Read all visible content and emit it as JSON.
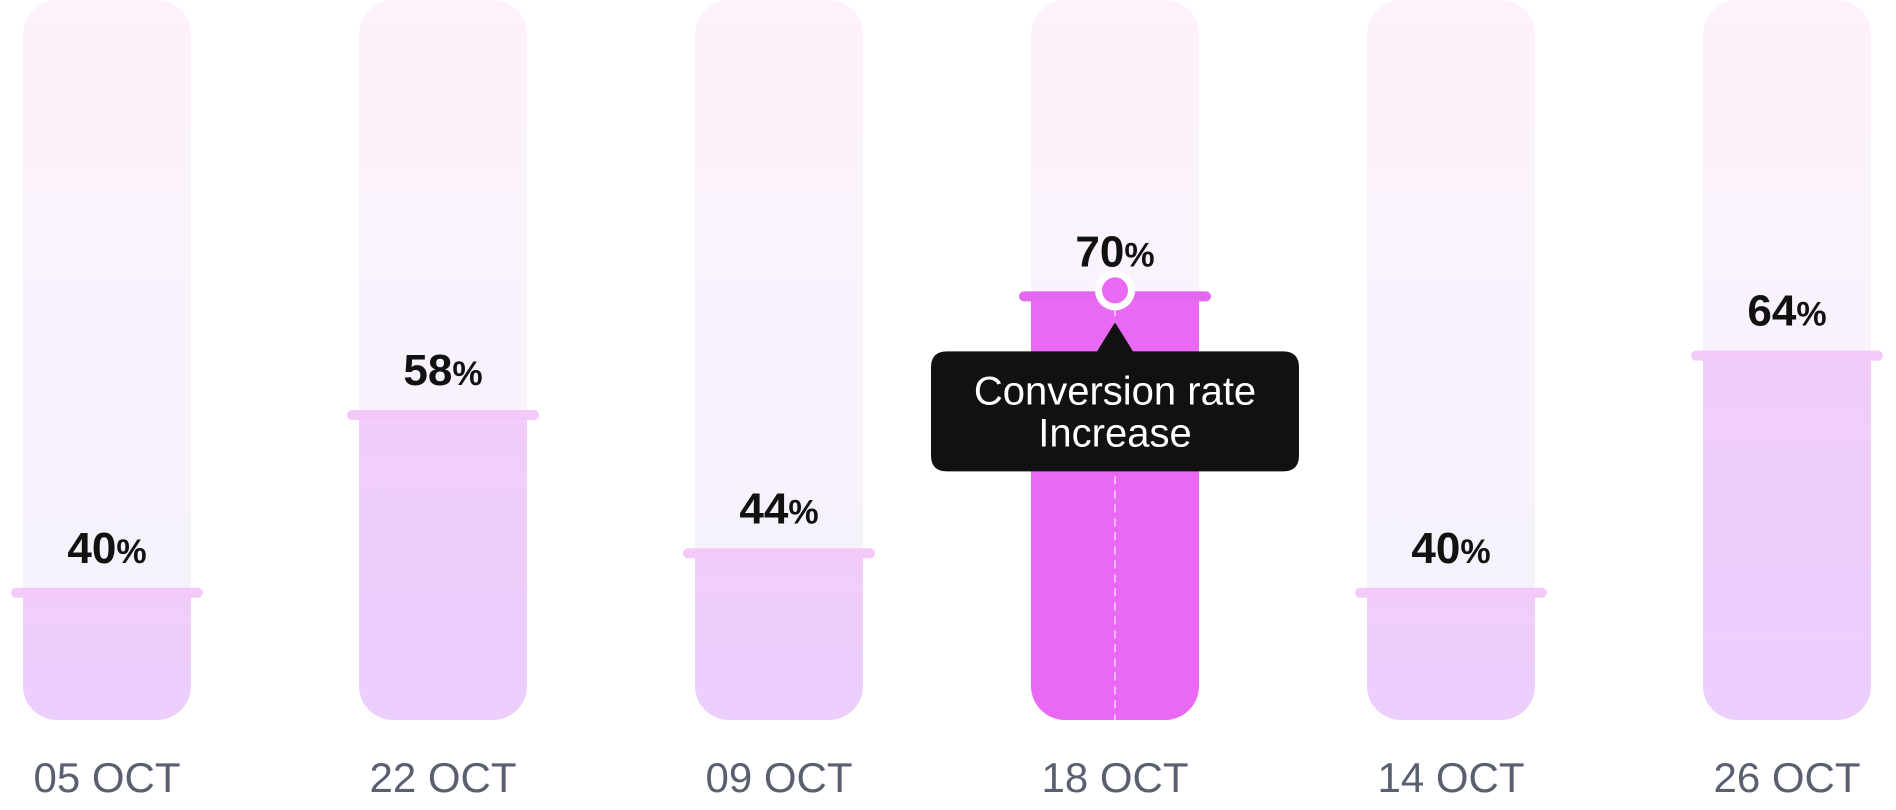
{
  "chart_data": {
    "type": "bar",
    "categories": [
      "05 OCT",
      "22 OCT",
      "09 OCT",
      "18 OCT",
      "14 OCT",
      "26 OCT"
    ],
    "values": [
      40,
      58,
      44,
      70,
      40,
      64
    ],
    "value_suffix": "%",
    "ylim": [
      0,
      100
    ],
    "highlighted_index": 3,
    "tooltip": {
      "category": "18 OCT",
      "lines": [
        "Conversion rate",
        "Increase"
      ]
    },
    "grid": false,
    "legend": "none",
    "colors": {
      "bar_fill_top": "#f2cdfb",
      "bar_fill_bottom": "#eccffd",
      "bar_bg_top": "#fdf1fb",
      "bar_bg_bottom": "#f4f3fd",
      "highlight": "#ea69f4",
      "cap": "#f3c9f9",
      "highlight_cap": "#e467f1",
      "tooltip_bg": "#111111",
      "category_text": "#5b6070",
      "value_text": "#111111"
    }
  }
}
